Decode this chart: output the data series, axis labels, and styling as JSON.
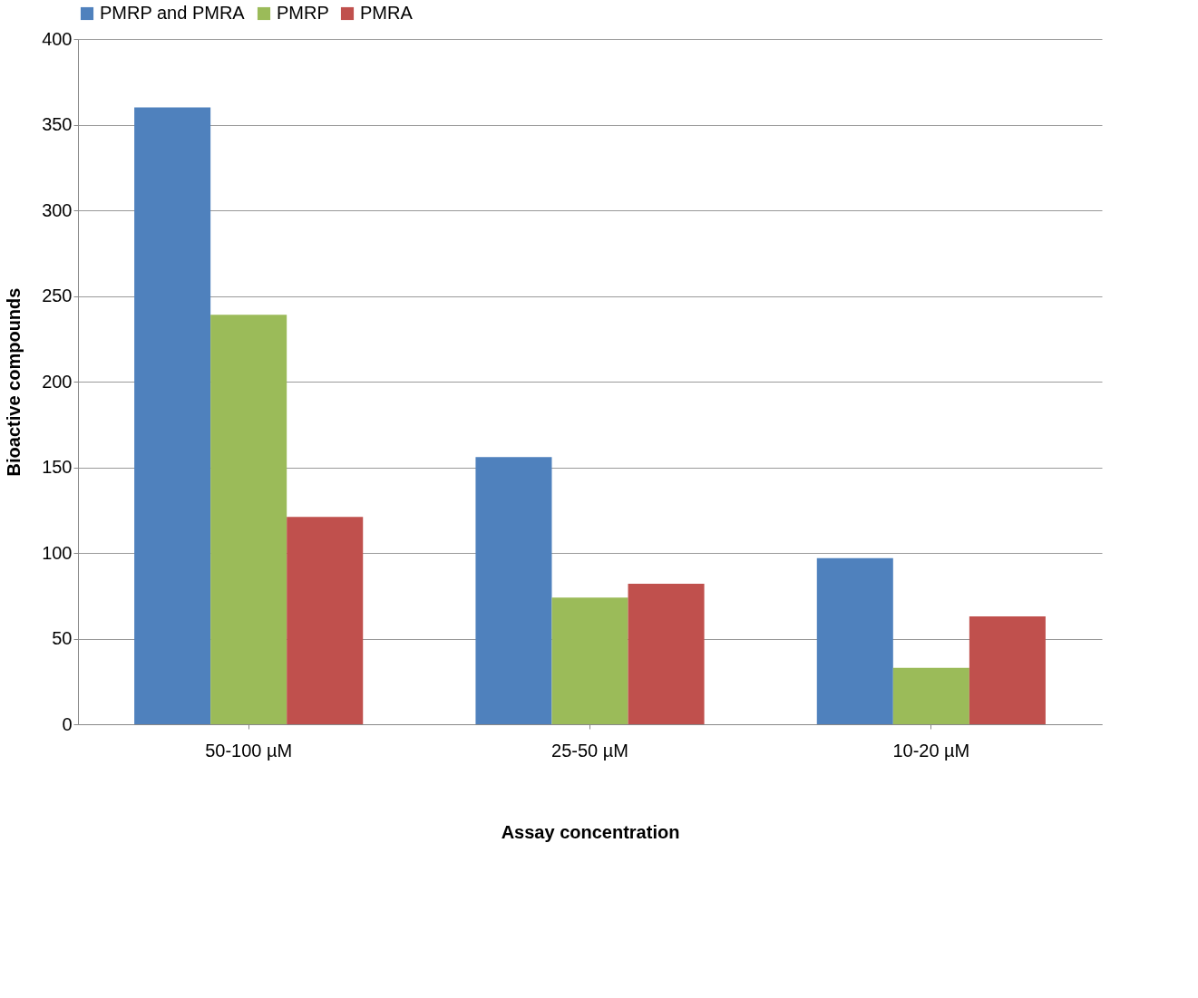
{
  "chart_data": {
    "type": "bar",
    "xlabel": "Assay concentration",
    "ylabel": "Bioactive compounds",
    "categories": [
      "50-100 µM",
      "25-50  µM",
      "10-20  µM"
    ],
    "series": [
      {
        "name": "PMRP and PMRA",
        "color": "#4f81bd",
        "values": [
          360,
          156,
          97
        ]
      },
      {
        "name": "PMRP",
        "color": "#9bbb59",
        "values": [
          239,
          74,
          33
        ]
      },
      {
        "name": "PMRA",
        "color": "#c0504d",
        "values": [
          121,
          82,
          63
        ]
      }
    ],
    "ylim": [
      0,
      400
    ],
    "yticks": [
      0,
      50,
      100,
      150,
      200,
      250,
      300,
      350,
      400
    ],
    "grid": "y",
    "legend": "top"
  }
}
